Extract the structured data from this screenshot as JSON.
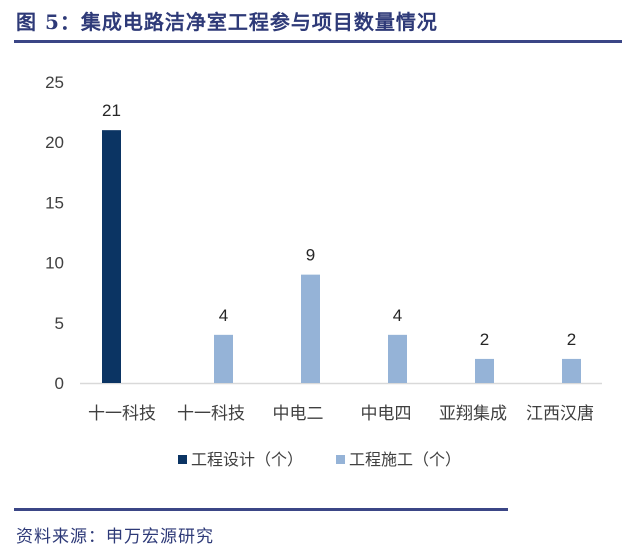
{
  "header": {
    "title": "图 5：集成电路洁净室工程参与项目数量情况"
  },
  "footer": {
    "source": "资料来源：申万宏源研究"
  },
  "colors": {
    "rule": "#3b4686",
    "title_text": "#2e3a78",
    "series_design": "#0b3463",
    "series_construction": "#95b3d7",
    "axis": "#d9d9d9",
    "label_text": "#404040"
  },
  "chart_data": {
    "type": "bar",
    "title": "集成电路洁净室工程参与项目数量情况",
    "xlabel": "",
    "ylabel": "",
    "ylim": [
      0,
      25
    ],
    "yticks": [
      0,
      5,
      10,
      15,
      20,
      25
    ],
    "grid": false,
    "legend_position": "bottom",
    "categories": [
      "十一科技",
      "十一科技",
      "中电二",
      "中电四",
      "亚翔集成",
      "江西汉唐"
    ],
    "series": [
      {
        "name": "工程设计（个）",
        "values": [
          21,
          null,
          null,
          null,
          null,
          null
        ]
      },
      {
        "name": "工程施工（个）",
        "values": [
          null,
          4,
          9,
          4,
          2,
          2
        ]
      }
    ],
    "bars": [
      {
        "category": "十一科技",
        "series": "工程设计（个）",
        "value": 21,
        "label": "21"
      },
      {
        "category": "十一科技",
        "series": "工程施工（个）",
        "value": 4,
        "label": "4"
      },
      {
        "category": "中电二",
        "series": "工程施工（个）",
        "value": 9,
        "label": "9"
      },
      {
        "category": "中电四",
        "series": "工程施工（个）",
        "value": 4,
        "label": "4"
      },
      {
        "category": "亚翔集成",
        "series": "工程施工（个）",
        "value": 2,
        "label": "2"
      },
      {
        "category": "江西汉唐",
        "series": "工程施工（个）",
        "value": 2,
        "label": "2"
      }
    ],
    "legend": [
      "工程设计（个）",
      "工程施工（个）"
    ]
  }
}
